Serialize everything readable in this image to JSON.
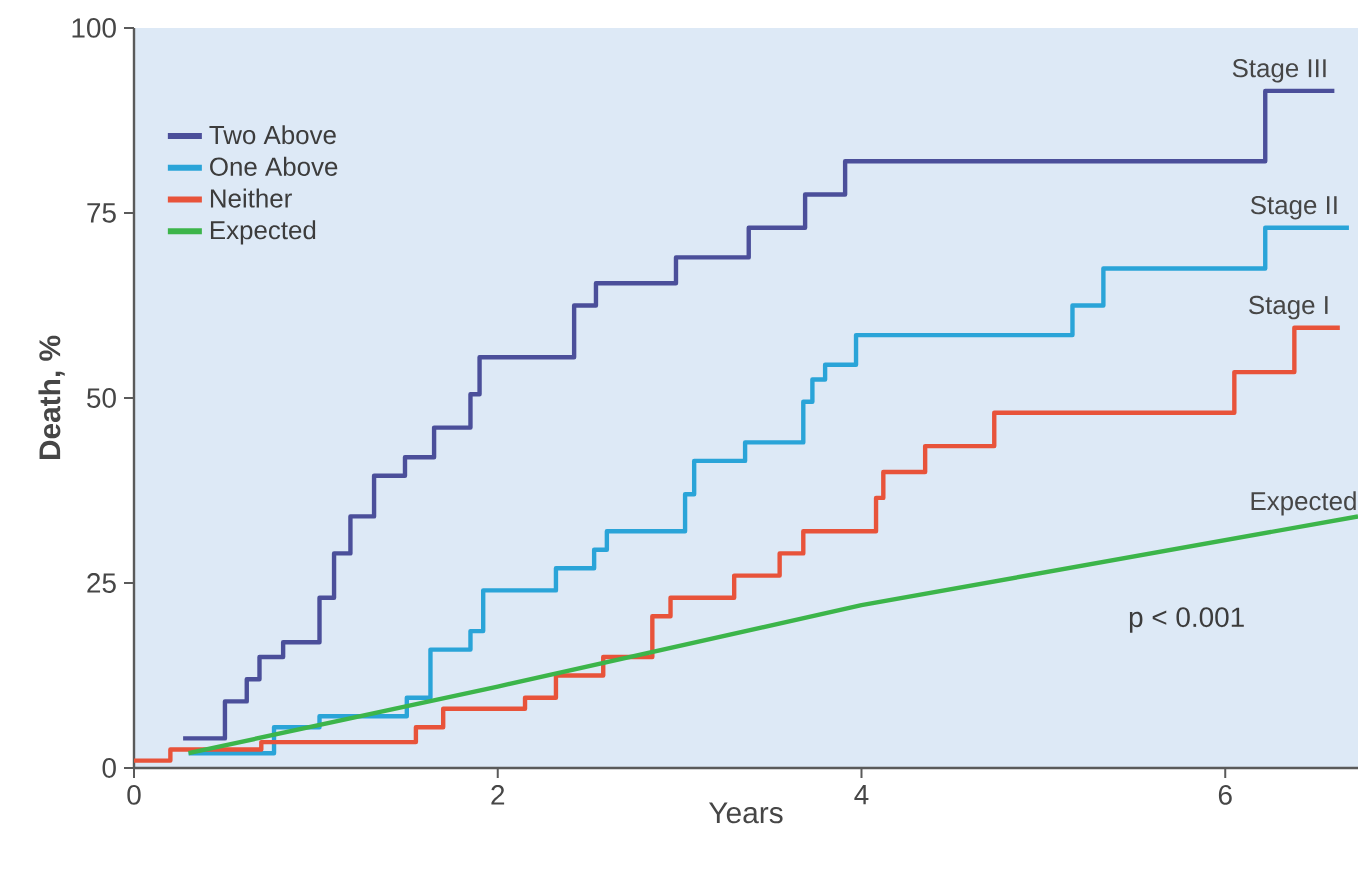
{
  "chart_data": {
    "type": "step",
    "xlabel": "Years",
    "ylabel": "Death, %",
    "xlim": [
      0,
      6.73
    ],
    "ylim": [
      0,
      100
    ],
    "xticks": [
      0,
      2,
      4,
      6
    ],
    "yticks": [
      0,
      25,
      50,
      75,
      100
    ],
    "legend": "top left",
    "grid": false,
    "series": [
      {
        "name": "Two Above",
        "color": "#4b4f9a",
        "x": [
          0.27,
          0.5,
          0.62,
          0.69,
          0.82,
          1.02,
          1.1,
          1.19,
          1.32,
          1.49,
          1.65,
          1.85,
          1.9,
          2.42,
          2.54,
          2.98,
          3.38,
          3.69,
          3.91,
          6.22,
          6.6
        ],
        "values": [
          4,
          9,
          12,
          15,
          17,
          23,
          29,
          34,
          39.5,
          42,
          46,
          50.5,
          55.5,
          62.5,
          65.5,
          69,
          73,
          77.5,
          82,
          91.5,
          91.5
        ]
      },
      {
        "name": "One Above",
        "color": "#2aa4d8",
        "x": [
          0.3,
          0.77,
          1.02,
          1.5,
          1.63,
          1.85,
          1.92,
          2.32,
          2.53,
          2.6,
          3.03,
          3.08,
          3.36,
          3.68,
          3.73,
          3.8,
          3.97,
          5.16,
          5.33,
          6.22,
          6.68
        ],
        "values": [
          2,
          5.5,
          7,
          9.5,
          16,
          18.5,
          24,
          27,
          29.5,
          32,
          37,
          41.5,
          44,
          49.5,
          52.5,
          54.5,
          58.5,
          62.5,
          67.5,
          73,
          73
        ]
      },
      {
        "name": "Neither",
        "color": "#e8533a",
        "x": [
          0,
          0.2,
          0.7,
          1.55,
          1.7,
          2.15,
          2.32,
          2.58,
          2.85,
          2.95,
          3.3,
          3.55,
          3.68,
          4.08,
          4.12,
          4.35,
          4.73,
          6.05,
          6.38,
          6.63
        ],
        "values": [
          1,
          2.5,
          3.5,
          5.5,
          8,
          9.5,
          12.5,
          15,
          20.5,
          23,
          26,
          29,
          32,
          36.5,
          40,
          43.5,
          48,
          53.5,
          59.5,
          59.5
        ]
      },
      {
        "name": "Expected",
        "color": "#3cb54a",
        "type": "line",
        "x": [
          0.3,
          2,
          4,
          6.73
        ],
        "values": [
          2,
          11,
          22,
          34
        ]
      }
    ],
    "annotations": [
      {
        "text": "Stage III",
        "x": 6.3,
        "y": 91.5
      },
      {
        "text": "Stage II",
        "x": 6.38,
        "y": 73
      },
      {
        "text": "Stage I",
        "x": 6.35,
        "y": 59.5
      },
      {
        "text": "Expected",
        "x": 6.43,
        "y": 33
      },
      "p < 0.001"
    ]
  }
}
